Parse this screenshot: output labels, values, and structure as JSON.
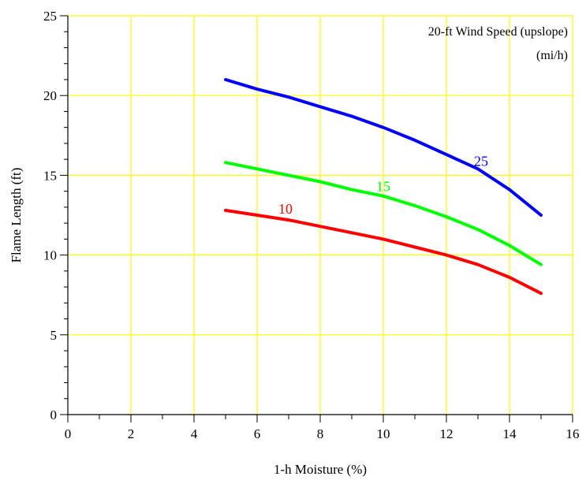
{
  "chart_data": {
    "type": "line",
    "xlabel": "1-h Moisture (%)",
    "ylabel": "Flame Length (ft)",
    "xlim": [
      0,
      16
    ],
    "ylim": [
      0,
      25
    ],
    "x_ticks": [
      0,
      2,
      4,
      6,
      8,
      10,
      12,
      14,
      16
    ],
    "y_ticks": [
      0,
      5,
      10,
      15,
      20,
      25
    ],
    "x_tick_labels": [
      "0",
      "2",
      "4",
      "6",
      "8",
      "10",
      "12",
      "14",
      "16"
    ],
    "y_tick_labels": [
      "0",
      "5",
      "10",
      "15",
      "20",
      "25"
    ],
    "grid": true,
    "grid_color": "#ffff00",
    "legend": {
      "title_line1": "20-ft Wind Speed (upslope)",
      "title_line2": "(mi/h)",
      "placement": "top-right"
    },
    "x": [
      5,
      6,
      7,
      8,
      9,
      10,
      11,
      12,
      13,
      14,
      15
    ],
    "series": [
      {
        "name": "25",
        "color": "#0000ff",
        "values": [
          21.0,
          20.4,
          19.9,
          19.3,
          18.7,
          18.0,
          17.2,
          16.3,
          15.4,
          14.1,
          12.5
        ],
        "label_at": [
          13.1,
          15.6
        ]
      },
      {
        "name": "15",
        "color": "#00ff00",
        "values": [
          15.8,
          15.4,
          15.0,
          14.6,
          14.1,
          13.7,
          13.1,
          12.4,
          11.6,
          10.6,
          9.4
        ],
        "label_at": [
          10.0,
          14.0
        ]
      },
      {
        "name": "10",
        "color": "#ff0000",
        "values": [
          12.8,
          12.5,
          12.2,
          11.8,
          11.4,
          11.0,
          10.5,
          10.0,
          9.4,
          8.6,
          7.6
        ],
        "label_at": [
          6.9,
          12.6
        ]
      }
    ]
  }
}
